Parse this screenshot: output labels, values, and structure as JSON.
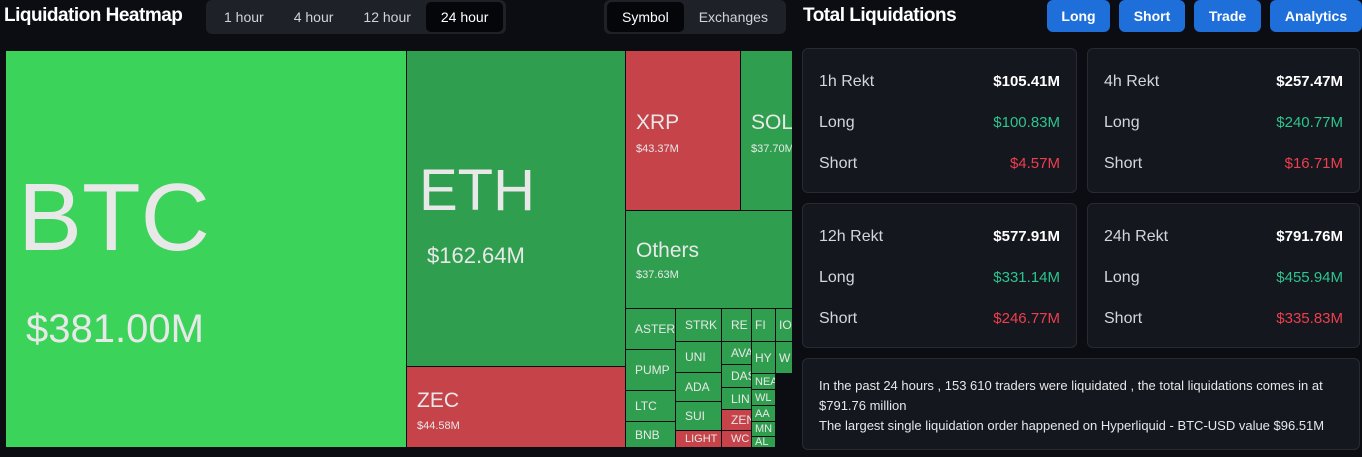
{
  "header": {
    "title": "Liquidation Heatmap",
    "time_tabs": [
      "1 hour",
      "4 hour",
      "12 hour",
      "24 hour"
    ],
    "active_time": "24 hour",
    "view_tabs": [
      "Symbol",
      "Exchanges"
    ],
    "active_view": "Symbol"
  },
  "heatmap": {
    "colors": {
      "long_dominant_bright": "#3bd35a",
      "long_dominant": "#2f9f4f",
      "short_dominant": "#c6434a"
    },
    "big": [
      {
        "symbol": "BTC",
        "value": "$381.00M"
      },
      {
        "symbol": "ETH",
        "value": "$162.64M"
      },
      {
        "symbol": "ZEC",
        "value": "$44.58M"
      },
      {
        "symbol": "XRP",
        "value": "$43.37M"
      },
      {
        "symbol": "SOL",
        "value": "$37.70M"
      },
      {
        "symbol": "Others",
        "value": "$37.63M"
      }
    ],
    "small": [
      "ASTER",
      "PUMP",
      "LTC",
      "BNB",
      "STRK",
      "UNI",
      "ADA",
      "SUI",
      "LIGHT",
      "RE",
      "AVA",
      "DAS",
      "LIN",
      "ZEN",
      "WC",
      "FI",
      "HY",
      "NEA",
      "WL",
      "AA",
      "MN",
      "AL",
      "IO",
      "W"
    ]
  },
  "totals": {
    "title": "Total Liquidations",
    "buttons": [
      "Long",
      "Short",
      "Trade",
      "Analytics"
    ],
    "cards": [
      {
        "label": "1h Rekt",
        "total": "$105.41M",
        "long_label": "Long",
        "long": "$100.83M",
        "short_label": "Short",
        "short": "$4.57M"
      },
      {
        "label": "4h Rekt",
        "total": "$257.47M",
        "long_label": "Long",
        "long": "$240.77M",
        "short_label": "Short",
        "short": "$16.71M"
      },
      {
        "label": "12h Rekt",
        "total": "$577.91M",
        "long_label": "Long",
        "long": "$331.14M",
        "short_label": "Short",
        "short": "$246.77M"
      },
      {
        "label": "24h Rekt",
        "total": "$791.76M",
        "long_label": "Long",
        "long": "$455.94M",
        "short_label": "Short",
        "short": "$335.83M"
      }
    ],
    "summary_1": "In the past 24 hours , 153 610 traders were liquidated , the total liquidations comes in at $791.76 million",
    "summary_2": "The largest single liquidation order happened on Hyperliquid - BTC-USD value $96.51M"
  }
}
